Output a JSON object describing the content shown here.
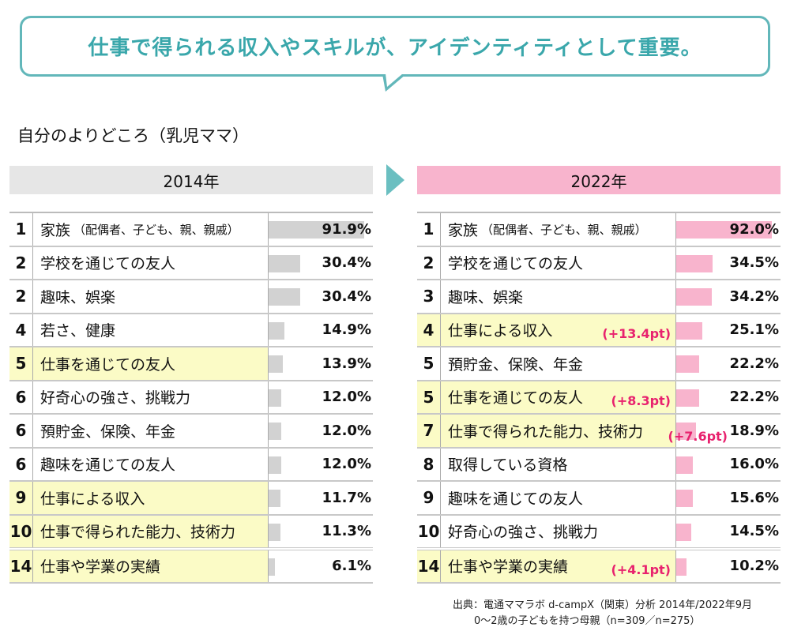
{
  "headline": "仕事で得られる収入やスキルが、アイデンティティとして重要。",
  "subtitle": "自分のよりどころ（乳児ママ）",
  "colors": {
    "accent": "#62b7ba",
    "bar2014": "#d2d2d2",
    "bar2022": "#f8b4cd",
    "highlight": "#fbfbc6",
    "diff": "#e8226e",
    "header2014": "#e6e6e6",
    "header2022": "#f8b4cd"
  },
  "arrow_icon": "triangle-right",
  "chart_data": [
    {
      "type": "bar",
      "title": "2014年",
      "unit": "%",
      "xlim": [
        0,
        100
      ],
      "rows": [
        {
          "rank": "1",
          "label": "家族",
          "sub": "（配偶者、子ども、親、親戚）",
          "value": 91.9,
          "value_label": "91.9%",
          "highlight": false
        },
        {
          "rank": "2",
          "label": "学校を通じての友人",
          "value": 30.4,
          "value_label": "30.4%",
          "highlight": false
        },
        {
          "rank": "2",
          "label": "趣味、娯楽",
          "value": 30.4,
          "value_label": "30.4%",
          "highlight": false
        },
        {
          "rank": "4",
          "label": "若さ、健康",
          "value": 14.9,
          "value_label": "14.9%",
          "highlight": false
        },
        {
          "rank": "5",
          "label": "仕事を通じての友人",
          "value": 13.9,
          "value_label": "13.9%",
          "highlight": true
        },
        {
          "rank": "6",
          "label": "好奇心の強さ、挑戦力",
          "value": 12.0,
          "value_label": "12.0%",
          "highlight": false
        },
        {
          "rank": "6",
          "label": "預貯金、保険、年金",
          "value": 12.0,
          "value_label": "12.0%",
          "highlight": false
        },
        {
          "rank": "6",
          "label": "趣味を通じての友人",
          "value": 12.0,
          "value_label": "12.0%",
          "highlight": false
        },
        {
          "rank": "9",
          "label": "仕事による収入",
          "value": 11.7,
          "value_label": "11.7%",
          "highlight": true
        },
        {
          "rank": "10",
          "label": "仕事で得られた能力、技術力",
          "value": 11.3,
          "value_label": "11.3%",
          "highlight": true
        },
        {
          "rank": "14",
          "label": "仕事や学業の実績",
          "value": 6.1,
          "value_label": "6.1%",
          "highlight": true
        }
      ]
    },
    {
      "type": "bar",
      "title": "2022年",
      "unit": "%",
      "xlim": [
        0,
        100
      ],
      "rows": [
        {
          "rank": "1",
          "label": "家族",
          "sub": "（配偶者、子ども、親、親戚）",
          "value": 92.0,
          "value_label": "92.0%",
          "highlight": false
        },
        {
          "rank": "2",
          "label": "学校を通じての友人",
          "value": 34.5,
          "value_label": "34.5%",
          "highlight": false
        },
        {
          "rank": "3",
          "label": "趣味、娯楽",
          "value": 34.2,
          "value_label": "34.2%",
          "highlight": false
        },
        {
          "rank": "4",
          "label": "仕事による収入",
          "diff": "(+13.4pt)",
          "value": 25.1,
          "value_label": "25.1%",
          "highlight": true
        },
        {
          "rank": "5",
          "label": "預貯金、保険、年金",
          "value": 22.2,
          "value_label": "22.2%",
          "highlight": false
        },
        {
          "rank": "5",
          "label": "仕事を通じての友人",
          "diff": "(+8.3pt)",
          "value": 22.2,
          "value_label": "22.2%",
          "highlight": true
        },
        {
          "rank": "7",
          "label": "仕事で得られた能力、技術力",
          "diff": "(+7.6pt)",
          "value": 18.9,
          "value_label": "18.9%",
          "highlight": true
        },
        {
          "rank": "8",
          "label": "取得している資格",
          "value": 16.0,
          "value_label": "16.0%",
          "highlight": false
        },
        {
          "rank": "9",
          "label": "趣味を通じての友人",
          "value": 15.6,
          "value_label": "15.6%",
          "highlight": false
        },
        {
          "rank": "10",
          "label": "好奇心の強さ、挑戦力",
          "value": 14.5,
          "value_label": "14.5%",
          "highlight": false
        },
        {
          "rank": "14",
          "label": "仕事や学業の実績",
          "diff": "(+4.1pt)",
          "value": 10.2,
          "value_label": "10.2%",
          "highlight": true
        }
      ]
    }
  ],
  "source": "出典：電通ママラボ d-campX（関東）分析 2014年/2022年9月",
  "sample": "0〜2歳の子どもを持つ母親（n=309／n=275）"
}
